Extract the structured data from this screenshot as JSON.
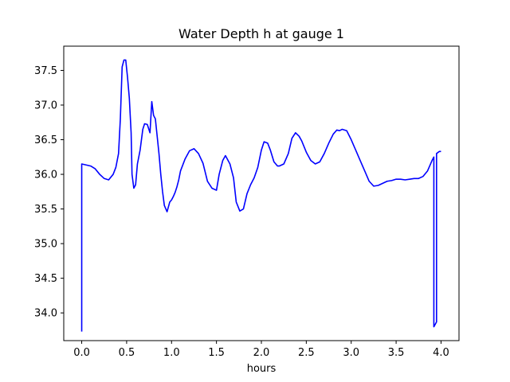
{
  "chart_data": {
    "type": "line",
    "title": "Water Depth h at gauge 1",
    "xlabel": "hours",
    "ylabel": "",
    "xlim": [
      -0.2,
      4.2
    ],
    "ylim": [
      33.6,
      37.85
    ],
    "grid": false,
    "x_ticks": [
      "0.0",
      "0.5",
      "1.0",
      "1.5",
      "2.0",
      "2.5",
      "3.0",
      "3.5",
      "4.0"
    ],
    "x_tick_values": [
      0.0,
      0.5,
      1.0,
      1.5,
      2.0,
      2.5,
      3.0,
      3.5,
      4.0
    ],
    "y_ticks": [
      "34.0",
      "34.5",
      "35.0",
      "35.5",
      "36.0",
      "36.5",
      "37.0",
      "37.5"
    ],
    "y_tick_values": [
      34.0,
      34.5,
      35.0,
      35.5,
      36.0,
      36.5,
      37.0,
      37.5
    ],
    "series": [
      {
        "color": "#0000ff",
        "x": [
          0.0,
          0.0,
          0.1,
          0.15,
          0.2,
          0.25,
          0.3,
          0.35,
          0.38,
          0.41,
          0.43,
          0.45,
          0.47,
          0.49,
          0.51,
          0.53,
          0.55,
          0.56,
          0.58,
          0.6,
          0.62,
          0.65,
          0.68,
          0.7,
          0.73,
          0.76,
          0.78,
          0.8,
          0.82,
          0.84,
          0.86,
          0.88,
          0.9,
          0.92,
          0.95,
          0.98,
          1.0,
          1.02,
          1.04,
          1.06,
          1.08,
          1.1,
          1.15,
          1.2,
          1.25,
          1.3,
          1.35,
          1.4,
          1.45,
          1.5,
          1.53,
          1.57,
          1.6,
          1.65,
          1.69,
          1.72,
          1.76,
          1.8,
          1.84,
          1.88,
          1.92,
          1.96,
          2.0,
          2.03,
          2.07,
          2.1,
          2.14,
          2.18,
          2.2,
          2.25,
          2.3,
          2.34,
          2.38,
          2.42,
          2.45,
          2.5,
          2.55,
          2.6,
          2.65,
          2.7,
          2.75,
          2.8,
          2.84,
          2.87,
          2.9,
          2.95,
          3.0,
          3.05,
          3.1,
          3.15,
          3.2,
          3.25,
          3.3,
          3.35,
          3.4,
          3.45,
          3.5,
          3.55,
          3.6,
          3.65,
          3.7,
          3.75,
          3.8,
          3.85,
          3.9,
          3.92,
          3.92,
          3.95,
          3.95,
          3.98,
          4.0
        ],
        "y": [
          33.73,
          36.15,
          36.12,
          36.08,
          36.0,
          35.94,
          35.92,
          36.0,
          36.1,
          36.3,
          36.8,
          37.55,
          37.65,
          37.65,
          37.4,
          37.1,
          36.6,
          36.0,
          35.8,
          35.85,
          36.15,
          36.35,
          36.65,
          36.73,
          36.72,
          36.6,
          37.05,
          36.85,
          36.8,
          36.55,
          36.3,
          36.0,
          35.75,
          35.55,
          35.46,
          35.6,
          35.63,
          35.68,
          35.74,
          35.82,
          35.92,
          36.05,
          36.22,
          36.34,
          36.37,
          36.3,
          36.16,
          35.9,
          35.8,
          35.77,
          36.0,
          36.2,
          36.27,
          36.15,
          35.95,
          35.6,
          35.47,
          35.5,
          35.72,
          35.85,
          35.95,
          36.1,
          36.35,
          36.47,
          36.45,
          36.35,
          36.18,
          36.12,
          36.12,
          36.15,
          36.3,
          36.52,
          36.6,
          36.55,
          36.48,
          36.32,
          36.2,
          36.15,
          36.18,
          36.3,
          36.45,
          36.58,
          36.64,
          36.63,
          36.65,
          36.63,
          36.5,
          36.35,
          36.2,
          36.05,
          35.9,
          35.83,
          35.84,
          35.87,
          35.9,
          35.91,
          35.93,
          35.93,
          35.92,
          35.93,
          35.94,
          35.94,
          35.97,
          36.05,
          36.2,
          36.25,
          33.8,
          33.87,
          36.3,
          36.33,
          36.33
        ]
      }
    ]
  }
}
